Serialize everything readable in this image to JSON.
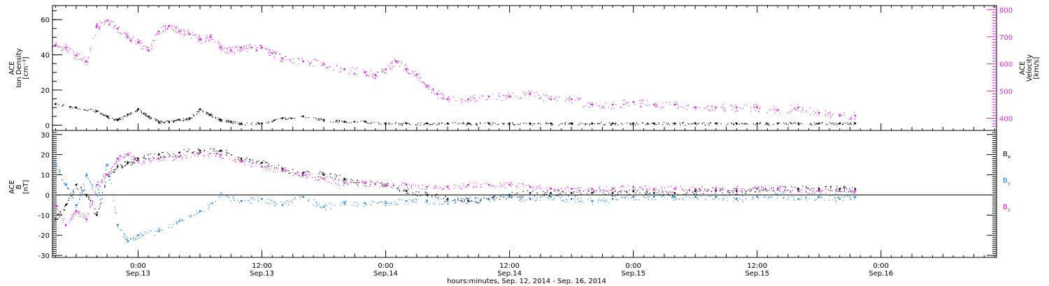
{
  "figure": {
    "xlabel": "hours:minutes, Sep. 12, 2014 - Sep. 16, 2014",
    "colors": {
      "axis": "#000000",
      "black": "#000000",
      "magenta": "#e020e0",
      "blue": "#1e88e5"
    }
  },
  "chart_data": [
    {
      "type": "scatter",
      "panel": "top",
      "ylabel_lines": [
        "ACE",
        "Ion Density",
        "[cm⁻³]"
      ],
      "ylim": [
        -3,
        68
      ],
      "yticks": [
        0,
        20,
        40,
        60
      ],
      "y2label_lines": [
        "ACE",
        "Velocity",
        "[km/s]"
      ],
      "y2lim": [
        355,
        815
      ],
      "y2ticks": [
        400,
        500,
        600,
        700,
        800
      ],
      "xlim_hours": [
        -8.3,
        83.2
      ],
      "xticks": [
        {
          "hours": 0,
          "time": "0:00",
          "date": "Sep.13"
        },
        {
          "hours": 12,
          "time": "12:00",
          "date": "Sep.13"
        },
        {
          "hours": 24,
          "time": "0:00",
          "date": "Sep.14"
        },
        {
          "hours": 36,
          "time": "12:00",
          "date": "Sep.14"
        },
        {
          "hours": 48,
          "time": "0:00",
          "date": "Sep.15"
        },
        {
          "hours": 60,
          "time": "12:00",
          "date": "Sep.15"
        },
        {
          "hours": 72,
          "time": "0:00",
          "date": "Sep.16"
        }
      ],
      "grid": false,
      "series": [
        {
          "color": "black",
          "axis": "left",
          "x": [
            -8,
            -6,
            -4,
            -3,
            -2,
            -1,
            0,
            1,
            2,
            3,
            4,
            5,
            6,
            7,
            8,
            9,
            10,
            12,
            14,
            16,
            18,
            20,
            22,
            24,
            26,
            28,
            30,
            32,
            34,
            36,
            38,
            40,
            42,
            44,
            46,
            48,
            50,
            52,
            54,
            56,
            58,
            60,
            62,
            64,
            66,
            68,
            69.5
          ],
          "y": [
            12,
            10,
            8,
            5,
            3,
            6,
            9,
            5,
            2,
            2,
            3,
            4,
            9,
            6,
            3,
            2,
            1,
            1,
            4,
            5,
            3,
            2,
            2,
            1,
            1,
            1,
            1,
            1,
            1,
            1,
            1,
            1,
            1,
            1,
            1,
            1,
            1,
            1,
            1,
            1,
            1,
            1,
            1,
            1,
            1,
            1,
            1
          ]
        },
        {
          "color": "magenta",
          "axis": "right",
          "x": [
            -8,
            -7,
            -6,
            -5,
            -4,
            -3,
            -2,
            -1,
            0,
            1,
            2,
            3,
            4,
            5,
            6,
            7,
            8,
            9,
            10,
            11,
            12,
            13,
            14,
            16,
            18,
            20,
            22,
            23,
            24,
            25,
            26,
            27,
            28,
            29,
            30,
            32,
            34,
            36,
            38,
            40,
            42,
            44,
            46,
            48,
            50,
            52,
            54,
            56,
            58,
            60,
            62,
            64,
            66,
            68,
            69.5
          ],
          "y": [
            670,
            660,
            630,
            610,
            740,
            760,
            730,
            700,
            680,
            650,
            720,
            740,
            720,
            710,
            690,
            700,
            660,
            650,
            660,
            660,
            660,
            640,
            620,
            610,
            600,
            580,
            570,
            560,
            580,
            610,
            580,
            560,
            520,
            490,
            470,
            470,
            480,
            480,
            490,
            470,
            470,
            450,
            450,
            460,
            450,
            450,
            440,
            440,
            440,
            440,
            430,
            440,
            420,
            410,
            410
          ]
        }
      ]
    },
    {
      "type": "scatter",
      "panel": "bottom",
      "ylabel_lines": [
        "ACE",
        "B",
        "[nT]"
      ],
      "ylim": [
        -31,
        32
      ],
      "yticks": [
        -30,
        -20,
        -10,
        0,
        10,
        20,
        30
      ],
      "zero_line": true,
      "xlim_hours": [
        -8.3,
        83.2
      ],
      "grid": false,
      "series": [
        {
          "name": "B",
          "subscript": "x",
          "color": "black",
          "x": [
            -8,
            -7,
            -6,
            -5,
            -4,
            -3,
            -2,
            -1,
            0,
            2,
            4,
            6,
            8,
            10,
            12,
            14,
            16,
            18,
            20,
            22,
            24,
            26,
            28,
            30,
            32,
            34,
            36,
            38,
            40,
            42,
            44,
            46,
            48,
            50,
            52,
            54,
            56,
            58,
            60,
            62,
            64,
            66,
            68,
            69.5
          ],
          "y": [
            -12,
            -5,
            5,
            0,
            -10,
            10,
            14,
            16,
            18,
            20,
            21,
            22,
            22,
            18,
            16,
            13,
            11,
            10,
            8,
            6,
            5,
            2,
            0,
            -2,
            -3,
            -2,
            0,
            1,
            1,
            1,
            1,
            1,
            2,
            1,
            1,
            2,
            2,
            2,
            3,
            3,
            3,
            3,
            3,
            3
          ]
        },
        {
          "name": "B",
          "subscript": "y",
          "color": "blue",
          "x": [
            -8,
            -7,
            -6,
            -5,
            -4,
            -3,
            -2,
            -1,
            0,
            2,
            4,
            6,
            8,
            10,
            12,
            14,
            16,
            18,
            20,
            22,
            24,
            26,
            28,
            30,
            32,
            34,
            36,
            38,
            40,
            42,
            44,
            46,
            48,
            50,
            52,
            54,
            56,
            58,
            60,
            62,
            64,
            66,
            68,
            69.5
          ],
          "y": [
            15,
            5,
            -5,
            10,
            0,
            15,
            -15,
            -23,
            -20,
            -18,
            -13,
            -8,
            0,
            -3,
            -2,
            -5,
            -1,
            -6,
            -4,
            -4,
            -4,
            -3,
            -3,
            -3,
            -2,
            -2,
            -1,
            -2,
            -1,
            -2,
            -3,
            -2,
            -1,
            -1,
            -1,
            -1,
            -1,
            -2,
            -1,
            0,
            -2,
            -1,
            -2,
            -1
          ]
        },
        {
          "name": "B",
          "subscript": "z",
          "color": "magenta",
          "x": [
            -8,
            -7,
            -6,
            -5,
            -4,
            -3,
            -2,
            -1,
            0,
            2,
            4,
            6,
            8,
            10,
            12,
            14,
            16,
            18,
            20,
            22,
            24,
            26,
            28,
            30,
            32,
            34,
            36,
            38,
            40,
            42,
            44,
            46,
            48,
            50,
            52,
            54,
            56,
            58,
            60,
            62,
            64,
            66,
            68,
            69.5
          ],
          "y": [
            -5,
            -15,
            -8,
            -12,
            5,
            10,
            18,
            20,
            17,
            18,
            19,
            21,
            20,
            17,
            14,
            12,
            10,
            8,
            6,
            6,
            5,
            5,
            4,
            4,
            5,
            5,
            5,
            4,
            3,
            3,
            3,
            3,
            4,
            3,
            3,
            3,
            3,
            3,
            3,
            3,
            2,
            2,
            2,
            2
          ]
        }
      ]
    }
  ]
}
